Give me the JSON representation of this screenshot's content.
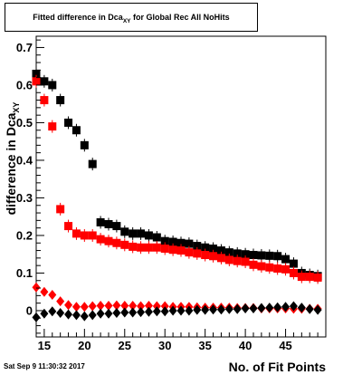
{
  "title": {
    "main": "Fitted difference in Dca",
    "sub": "XY",
    "rest": " for Global Rec All NoHits"
  },
  "timestamp": "Sat Sep  9 11:30:32 2017",
  "chart_data": {
    "type": "scatter",
    "xlabel": "No. of Fit Points",
    "ylabel": "difference in Dca",
    "ylabel_sub": "XY",
    "xlim": [
      14,
      50
    ],
    "ylim": [
      -0.07,
      0.73
    ],
    "xticks": [
      15,
      20,
      25,
      30,
      35,
      40,
      45
    ],
    "yticks": [
      0,
      0.1,
      0.2,
      0.3,
      0.4,
      0.5,
      0.6,
      0.7
    ],
    "ytick_labels": [
      "0",
      "0.1",
      "0.2",
      "0.3",
      "0.4",
      "0.5",
      "0.6",
      "0.7"
    ],
    "grid": false,
    "series": [
      {
        "marker": "square",
        "color": "#000000",
        "x": [
          14,
          15,
          16,
          17,
          18,
          19,
          20,
          21,
          22,
          23,
          24,
          25,
          26,
          27,
          28,
          29,
          30,
          31,
          32,
          33,
          34,
          35,
          36,
          37,
          38,
          39,
          40,
          41,
          42,
          43,
          44,
          45,
          46,
          47,
          48,
          49
        ],
        "y": [
          0.63,
          0.61,
          0.6,
          0.56,
          0.5,
          0.48,
          0.44,
          0.39,
          0.235,
          0.23,
          0.225,
          0.21,
          0.205,
          0.205,
          0.2,
          0.195,
          0.185,
          0.183,
          0.18,
          0.178,
          0.172,
          0.168,
          0.165,
          0.16,
          0.155,
          0.152,
          0.15,
          0.148,
          0.147,
          0.146,
          0.145,
          0.137,
          0.125,
          0.1,
          0.095,
          0.092
        ]
      },
      {
        "marker": "square",
        "color": "#ff0000",
        "x": [
          14,
          15,
          16,
          17,
          18,
          19,
          20,
          21,
          22,
          23,
          24,
          25,
          26,
          27,
          28,
          29,
          30,
          31,
          32,
          33,
          34,
          35,
          36,
          37,
          38,
          39,
          40,
          41,
          42,
          43,
          44,
          45,
          46,
          47,
          48,
          49
        ],
        "y": [
          0.61,
          0.56,
          0.49,
          0.27,
          0.225,
          0.205,
          0.2,
          0.2,
          0.19,
          0.185,
          0.18,
          0.175,
          0.17,
          0.168,
          0.168,
          0.168,
          0.165,
          0.162,
          0.16,
          0.155,
          0.152,
          0.148,
          0.145,
          0.14,
          0.135,
          0.132,
          0.13,
          0.122,
          0.118,
          0.115,
          0.112,
          0.11,
          0.1,
          0.09,
          0.09,
          0.088
        ]
      },
      {
        "marker": "diamond",
        "color": "#ff0000",
        "x": [
          14,
          15,
          16,
          17,
          18,
          19,
          20,
          21,
          22,
          23,
          24,
          25,
          26,
          27,
          28,
          29,
          30,
          31,
          32,
          33,
          34,
          35,
          36,
          37,
          38,
          39,
          40,
          41,
          42,
          43,
          44,
          45,
          46,
          47,
          48,
          49
        ],
        "y": [
          0.062,
          0.05,
          0.042,
          0.025,
          0.015,
          0.01,
          0.01,
          0.012,
          0.013,
          0.013,
          0.014,
          0.013,
          0.013,
          0.012,
          0.013,
          0.012,
          0.012,
          0.01,
          0.01,
          0.01,
          0.009,
          0.008,
          0.008,
          0.008,
          0.008,
          0.007,
          0.007,
          0.007,
          0.006,
          0.006,
          0.006,
          0.006,
          0.005,
          0.005,
          0.005,
          0.005
        ]
      },
      {
        "marker": "diamond",
        "color": "#000000",
        "x": [
          14,
          15,
          16,
          17,
          18,
          19,
          20,
          21,
          22,
          23,
          24,
          25,
          26,
          27,
          28,
          29,
          30,
          31,
          32,
          33,
          34,
          35,
          36,
          37,
          38,
          39,
          40,
          41,
          42,
          43,
          44,
          45,
          46,
          47,
          48,
          49
        ],
        "y": [
          -0.018,
          -0.008,
          -0.002,
          -0.006,
          -0.01,
          -0.012,
          -0.015,
          -0.012,
          -0.008,
          -0.008,
          -0.006,
          -0.005,
          -0.005,
          -0.004,
          -0.003,
          -0.002,
          -0.002,
          0.0,
          0.0,
          0.0,
          0.002,
          0.002,
          0.003,
          0.003,
          0.004,
          0.004,
          0.006,
          0.006,
          0.007,
          0.008,
          0.009,
          0.01,
          0.012,
          0.008,
          0.004,
          0.002
        ]
      }
    ]
  }
}
